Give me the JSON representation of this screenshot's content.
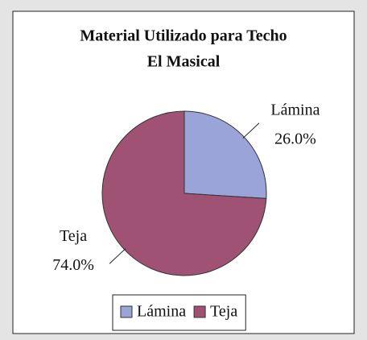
{
  "chart_data": {
    "type": "pie",
    "title": "Material Utilizado para Techo",
    "subtitle": "El Masical",
    "categories": [
      "Lámina",
      "Teja"
    ],
    "values": [
      26.0,
      74.0
    ],
    "value_labels": [
      "26.0%",
      "74.0%"
    ],
    "colors": [
      "#9aa4d8",
      "#a05274"
    ],
    "legend": "bottom"
  }
}
